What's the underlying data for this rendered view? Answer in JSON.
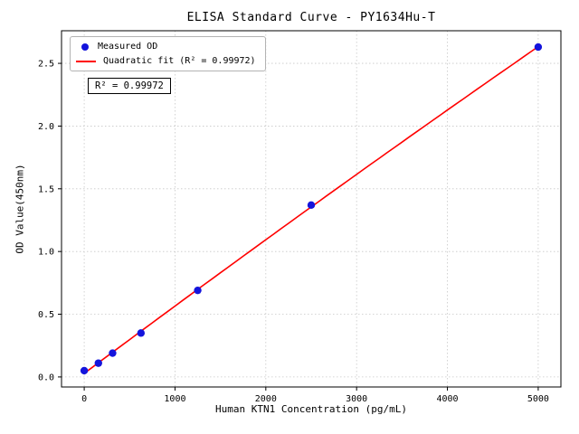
{
  "chart_data": {
    "type": "scatter",
    "title": "ELISA Standard Curve - PY1634Hu-T",
    "xlabel": "Human KTN1 Concentration (pg/mL)",
    "ylabel": "OD Value(450nm)",
    "x": [
      0,
      156.25,
      312.5,
      625,
      1250,
      2500,
      5000
    ],
    "y": [
      0.05,
      0.11,
      0.19,
      0.35,
      0.69,
      1.37,
      2.63
    ],
    "series": [
      {
        "name": "Measured OD",
        "type": "scatter",
        "color": "#1414dc"
      },
      {
        "name": "Quadratic fit (R² = 0.99972)",
        "type": "line",
        "color": "#ff0000"
      }
    ],
    "legend": [
      "Measured OD",
      "Quadratic fit (R² = 0.99972)"
    ],
    "legend_position": "upper left",
    "annotation": "R² = 0.99972",
    "r_squared": 0.99972,
    "xlim": [
      -250,
      5250
    ],
    "ylim": [
      -0.08,
      2.76
    ],
    "xticks": [
      0,
      1000,
      2000,
      3000,
      4000,
      5000
    ],
    "xtick_labels": [
      "0",
      "1000",
      "2000",
      "3000",
      "4000",
      "5000"
    ],
    "yticks": [
      0.0,
      0.5,
      1.0,
      1.5,
      2.0,
      2.5
    ],
    "ytick_labels": [
      "0.0",
      "0.5",
      "1.0",
      "1.5",
      "2.0",
      "2.5"
    ],
    "grid": true,
    "colors": {
      "points": "#1414dc",
      "line": "#ff0000",
      "grid": "#c8c8c8",
      "frame": "#000000"
    }
  }
}
